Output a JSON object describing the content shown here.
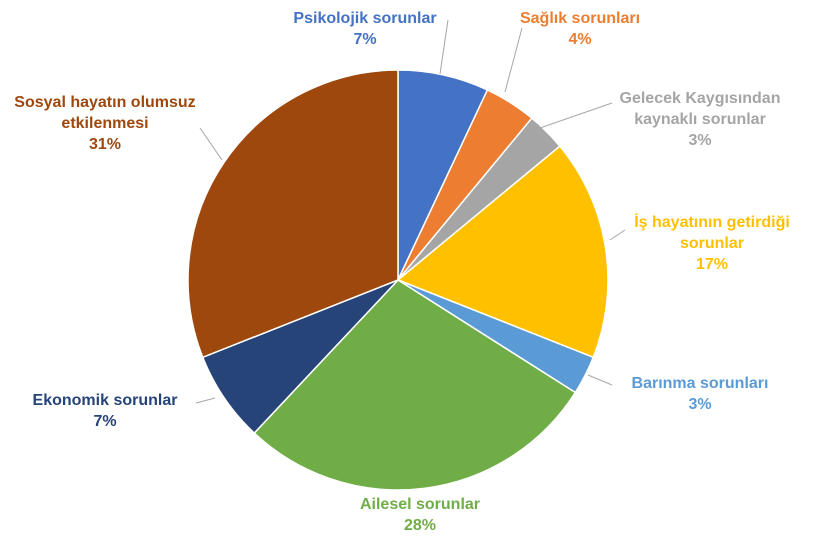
{
  "chart_data": {
    "type": "pie",
    "categories": [
      "Psikolojik sorunlar",
      "Sağlık sorunları",
      "Gelecek Kaygısından kaynaklı sorunlar",
      "İş hayatının getirdiği sorunlar",
      "Barınma sorunları",
      "Ailesel sorunlar",
      "Ekonomik sorunlar",
      "Sosyal hayatın olumsuz etkilenmesi"
    ],
    "values": [
      7,
      4,
      3,
      17,
      3,
      28,
      7,
      31
    ],
    "value_labels": [
      "7%",
      "4%",
      "3%",
      "17%",
      "3%",
      "28%",
      "7%",
      "31%"
    ],
    "colors": [
      "#4472c4",
      "#ed7d31",
      "#a5a5a5",
      "#ffc000",
      "#5b9bd5",
      "#70ad47",
      "#264478",
      "#9e480e"
    ]
  }
}
